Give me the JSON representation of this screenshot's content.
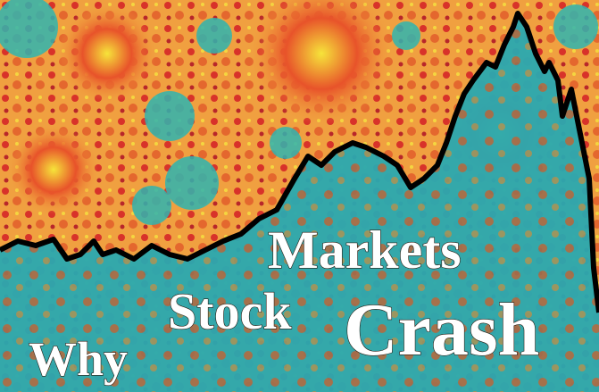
{
  "cover": {
    "title_words": [
      "Why",
      "Stock",
      "Markets",
      "Crash"
    ]
  }
}
